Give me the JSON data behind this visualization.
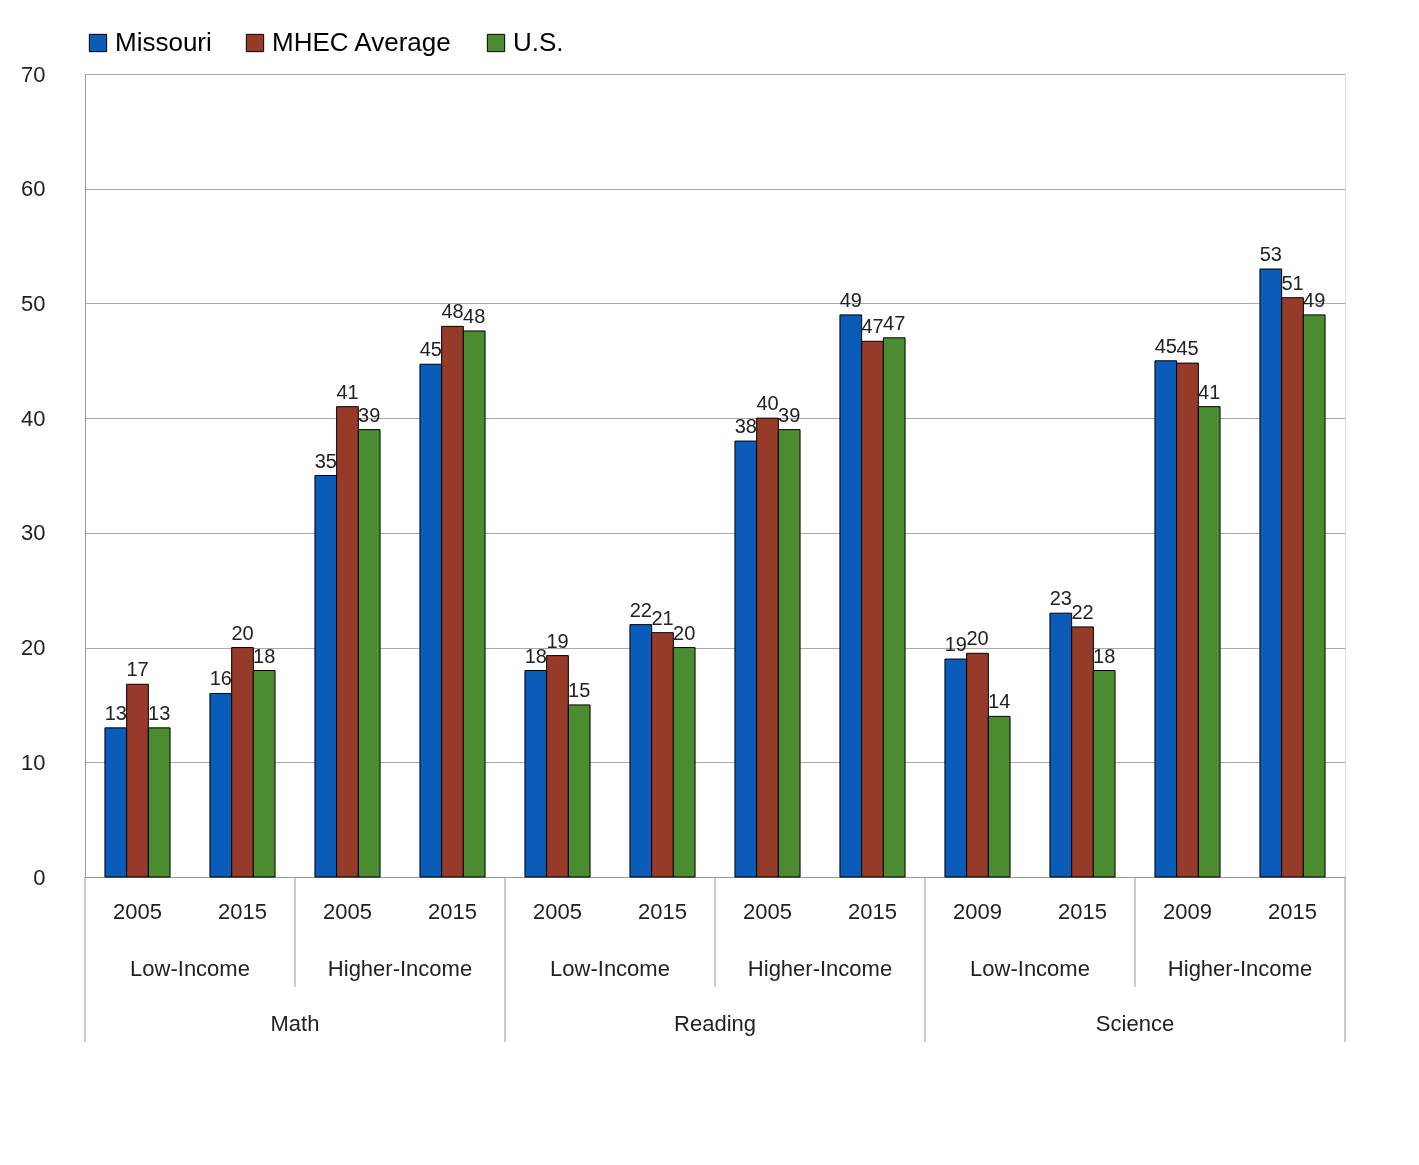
{
  "chart_data": {
    "type": "bar",
    "categories": [
      "2005",
      "2015",
      "2005",
      "2015",
      "2005",
      "2015",
      "2005",
      "2015",
      "2009",
      "2015",
      "2009",
      "2015"
    ],
    "series": [
      {
        "name": "Missouri",
        "color": "#0b5cb8",
        "values": [
          13,
          16,
          35,
          44.7,
          18,
          22,
          38,
          49,
          19,
          23,
          45,
          53
        ],
        "value_labels": [
          "13",
          "16",
          "35",
          "45",
          "18",
          "22",
          "38",
          "49",
          "19",
          "23",
          "45",
          "53"
        ]
      },
      {
        "name": "MHEC Average",
        "color": "#963a2a",
        "values": [
          16.8,
          20,
          41,
          48,
          19.3,
          21.3,
          40,
          46.7,
          19.5,
          21.8,
          44.8,
          50.5
        ],
        "value_labels": [
          "17",
          "20",
          "41",
          "48",
          "19",
          "21",
          "40",
          "47",
          "20",
          "22",
          "45",
          "51"
        ]
      },
      {
        "name": "U.S.",
        "color": "#4a8c2f",
        "values": [
          13,
          18,
          39,
          47.6,
          15,
          20,
          39,
          47,
          14,
          18,
          41,
          49
        ],
        "value_labels": [
          "13",
          "18",
          "39",
          "48",
          "15",
          "20",
          "39",
          "47",
          "14",
          "18",
          "41",
          "49"
        ]
      }
    ],
    "annotations": [
      "Low-Income",
      "Higher-Income",
      "Low-Income",
      "Higher-Income",
      "Low-Income",
      "Higher-Income",
      "Math",
      "Reading",
      "Science"
    ],
    "ylim": [
      0,
      70
    ],
    "yticks": [
      0,
      10,
      20,
      30,
      40,
      50,
      60,
      70
    ],
    "grid": "y",
    "legend": "top"
  }
}
